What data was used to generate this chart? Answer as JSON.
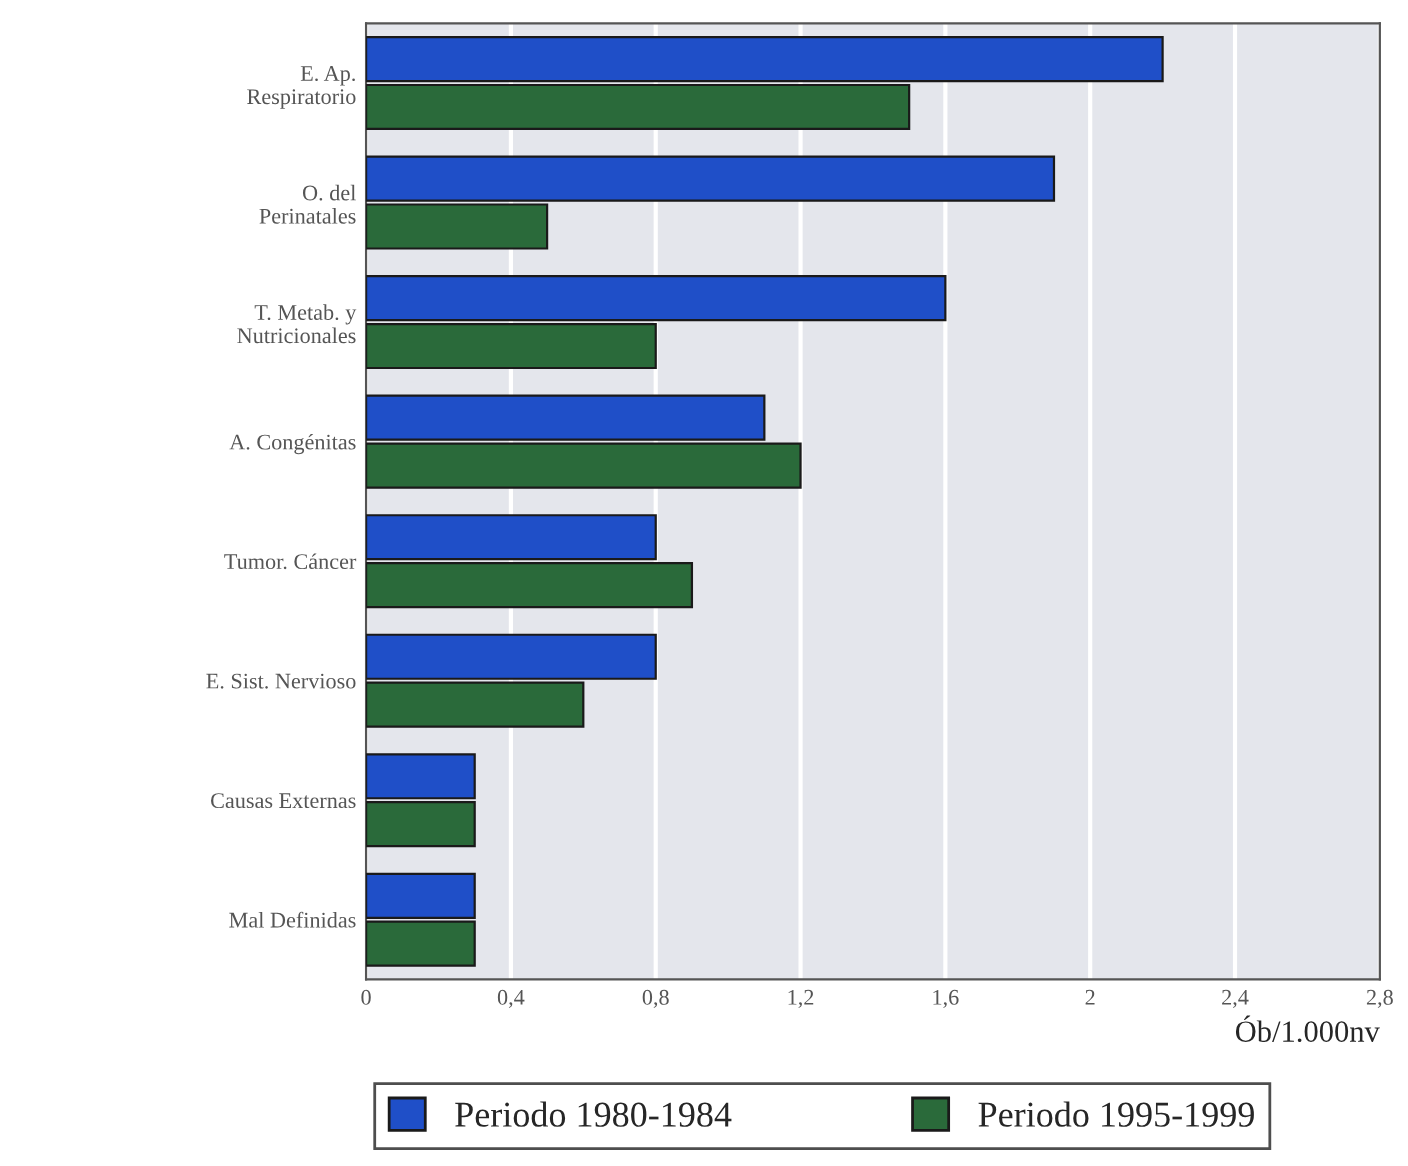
{
  "chart_data": {
    "type": "bar",
    "orientation": "horizontal",
    "xlabel": "Ób/1.000nv",
    "categories": [
      "E. Ap.\nRespiratorio",
      "O. del\nPerinatales",
      "T. Metab. y\nNutricionales",
      "A. Congénitas",
      "Tumor. Cáncer",
      "E. Sist. Nervioso",
      "Causas Externas",
      "Mal Definidas"
    ],
    "series": [
      {
        "name": "Periodo 1980-1984",
        "color": "#1f4fc8",
        "values": [
          2.2,
          1.9,
          1.6,
          1.1,
          0.8,
          0.8,
          0.3,
          0.3
        ]
      },
      {
        "name": "Periodo 1995-1999",
        "color": "#2a6a3a",
        "values": [
          1.5,
          0.5,
          0.8,
          1.2,
          0.9,
          0.6,
          0.3,
          0.3
        ]
      }
    ],
    "xlim": [
      0,
      2.8
    ],
    "xticks": [
      0,
      {
        "value": 0.4,
        "label": "0,4"
      },
      {
        "value": 0.8,
        "label": "0,8"
      },
      {
        "value": 1.2,
        "label": "1,2"
      },
      {
        "value": 1.6,
        "label": "1,6"
      },
      2,
      {
        "value": 2.4,
        "label": "2,4"
      },
      {
        "value": 2.8,
        "label": "2,8"
      }
    ],
    "grid": "x",
    "legend": "bottom"
  }
}
